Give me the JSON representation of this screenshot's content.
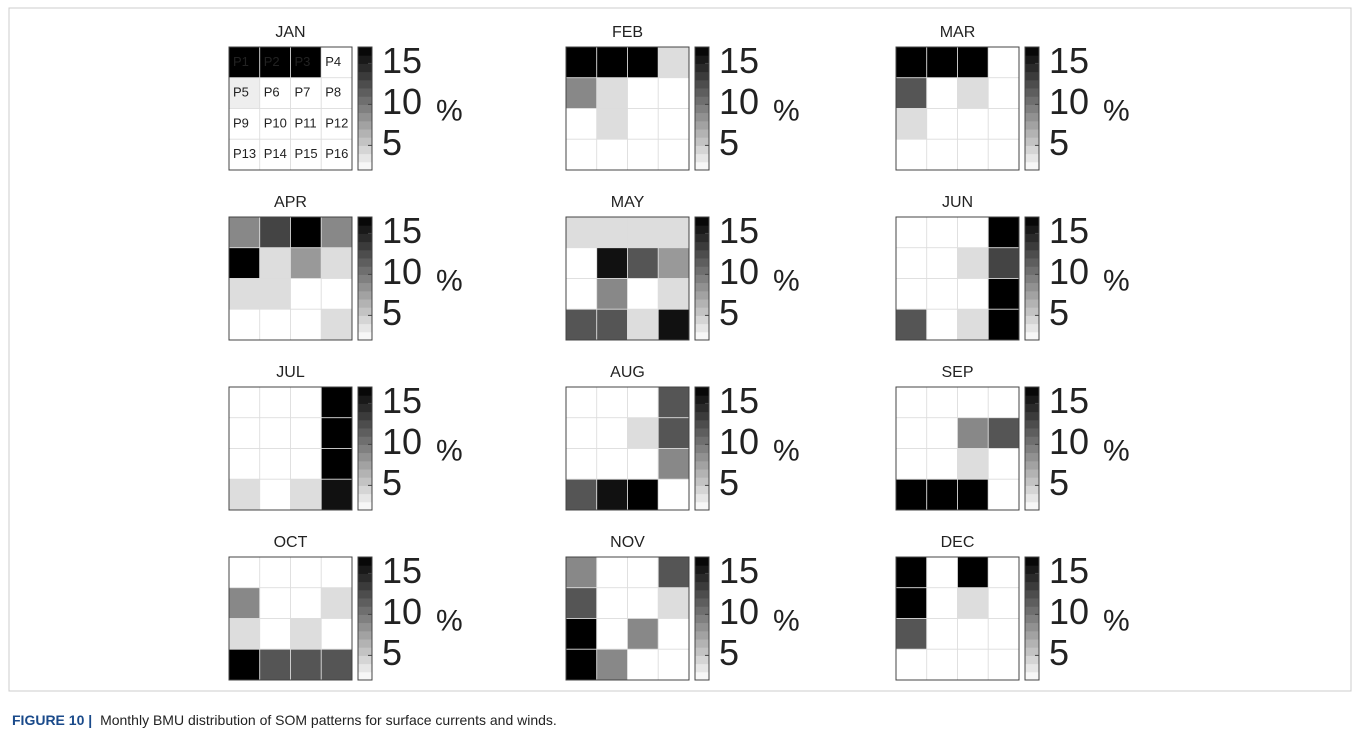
{
  "chart_data": [
    {
      "type": "heatmap",
      "title": "JAN",
      "zlim": [
        2,
        17
      ],
      "zticks": [
        5,
        10,
        15
      ],
      "colorbar_label": "%",
      "cell_labels": [
        [
          "P1",
          "P2",
          "P3",
          "P4"
        ],
        [
          "P5",
          "P6",
          "P7",
          "P8"
        ],
        [
          "P9",
          "P10",
          "P11",
          "P12"
        ],
        [
          "P13",
          "P14",
          "P15",
          "P16"
        ]
      ],
      "values": [
        [
          17,
          17,
          17,
          2
        ],
        [
          3,
          2,
          2,
          2
        ],
        [
          2,
          2,
          2,
          2
        ],
        [
          2,
          2,
          2,
          2
        ]
      ]
    },
    {
      "type": "heatmap",
      "title": "FEB",
      "zlim": [
        2,
        17
      ],
      "zticks": [
        5,
        10,
        15
      ],
      "colorbar_label": "%",
      "values": [
        [
          17,
          17,
          17,
          4
        ],
        [
          9,
          4,
          2,
          2
        ],
        [
          2,
          4,
          2,
          2
        ],
        [
          2,
          2,
          2,
          2
        ]
      ]
    },
    {
      "type": "heatmap",
      "title": "MAR",
      "zlim": [
        2,
        17
      ],
      "zticks": [
        5,
        10,
        15
      ],
      "colorbar_label": "%",
      "values": [
        [
          17,
          17,
          17,
          2
        ],
        [
          12,
          2,
          4,
          2
        ],
        [
          4,
          2,
          2,
          2
        ],
        [
          2,
          2,
          2,
          2
        ]
      ]
    },
    {
      "type": "heatmap",
      "title": "APR",
      "zlim": [
        2,
        17
      ],
      "zticks": [
        5,
        10,
        15
      ],
      "colorbar_label": "%",
      "values": [
        [
          9,
          13,
          17,
          9
        ],
        [
          17,
          4,
          8,
          4
        ],
        [
          4,
          4,
          2,
          2
        ],
        [
          2,
          2,
          2,
          4
        ]
      ]
    },
    {
      "type": "heatmap",
      "title": "MAY",
      "zlim": [
        2,
        17
      ],
      "zticks": [
        5,
        10,
        15
      ],
      "colorbar_label": "%",
      "values": [
        [
          4,
          4,
          4,
          4
        ],
        [
          2,
          16,
          12,
          8
        ],
        [
          2,
          9,
          2,
          4
        ],
        [
          12,
          12,
          4,
          16
        ]
      ]
    },
    {
      "type": "heatmap",
      "title": "JUN",
      "zlim": [
        2,
        17
      ],
      "zticks": [
        5,
        10,
        15
      ],
      "colorbar_label": "%",
      "values": [
        [
          2,
          2,
          2,
          17
        ],
        [
          2,
          2,
          4,
          13
        ],
        [
          2,
          2,
          2,
          17
        ],
        [
          12,
          2,
          4,
          17
        ]
      ]
    },
    {
      "type": "heatmap",
      "title": "JUL",
      "zlim": [
        2,
        17
      ],
      "zticks": [
        5,
        10,
        15
      ],
      "colorbar_label": "%",
      "values": [
        [
          2,
          2,
          2,
          17
        ],
        [
          2,
          2,
          2,
          17
        ],
        [
          2,
          2,
          2,
          17
        ],
        [
          4,
          2,
          4,
          16
        ]
      ]
    },
    {
      "type": "heatmap",
      "title": "AUG",
      "zlim": [
        2,
        17
      ],
      "zticks": [
        5,
        10,
        15
      ],
      "colorbar_label": "%",
      "values": [
        [
          2,
          2,
          2,
          12
        ],
        [
          2,
          2,
          4,
          12
        ],
        [
          2,
          2,
          2,
          9
        ],
        [
          12,
          16,
          17,
          2
        ]
      ]
    },
    {
      "type": "heatmap",
      "title": "SEP",
      "zlim": [
        2,
        17
      ],
      "zticks": [
        5,
        10,
        15
      ],
      "colorbar_label": "%",
      "values": [
        [
          2,
          2,
          2,
          2
        ],
        [
          2,
          2,
          9,
          12
        ],
        [
          2,
          2,
          4,
          2
        ],
        [
          17,
          17,
          17,
          2
        ]
      ]
    },
    {
      "type": "heatmap",
      "title": "OCT",
      "zlim": [
        2,
        17
      ],
      "zticks": [
        5,
        10,
        15
      ],
      "colorbar_label": "%",
      "values": [
        [
          2,
          2,
          2,
          2
        ],
        [
          9,
          2,
          2,
          4
        ],
        [
          4,
          2,
          4,
          2
        ],
        [
          17,
          12,
          12,
          12
        ]
      ]
    },
    {
      "type": "heatmap",
      "title": "NOV",
      "zlim": [
        2,
        17
      ],
      "zticks": [
        5,
        10,
        15
      ],
      "colorbar_label": "%",
      "values": [
        [
          9,
          2,
          2,
          12
        ],
        [
          12,
          2,
          2,
          4
        ],
        [
          17,
          2,
          9,
          2
        ],
        [
          17,
          9,
          2,
          2
        ]
      ]
    },
    {
      "type": "heatmap",
      "title": "DEC",
      "zlim": [
        2,
        17
      ],
      "zticks": [
        5,
        10,
        15
      ],
      "colorbar_label": "%",
      "values": [
        [
          17,
          2,
          17,
          2
        ],
        [
          17,
          2,
          4,
          2
        ],
        [
          12,
          2,
          2,
          2
        ],
        [
          2,
          2,
          2,
          2
        ]
      ]
    }
  ],
  "caption": {
    "label": "FIGURE 10 |",
    "text": "Monthly BMU distribution of SOM patterns for surface currents and winds."
  }
}
